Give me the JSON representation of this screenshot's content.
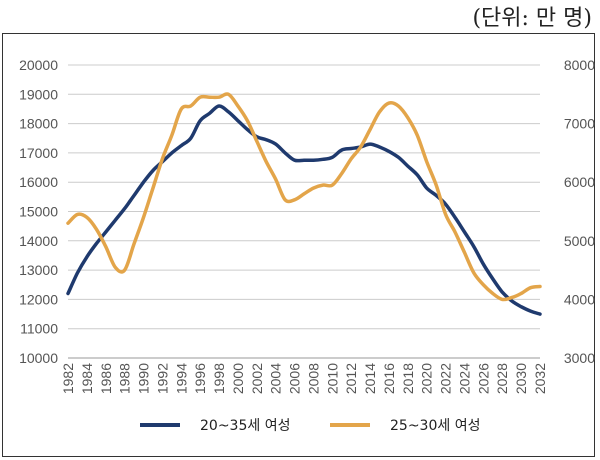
{
  "unit_label": "(단위: 만 명)",
  "colors": {
    "navy": "#1f3a6e",
    "gold": "#e3a54a",
    "grid": "#cccccc"
  },
  "chart_data": {
    "type": "line",
    "x": [
      1982,
      1983,
      1984,
      1985,
      1986,
      1987,
      1988,
      1989,
      1990,
      1991,
      1992,
      1993,
      1994,
      1995,
      1996,
      1997,
      1998,
      1999,
      2000,
      2001,
      2002,
      2003,
      2004,
      2005,
      2006,
      2007,
      2008,
      2009,
      2010,
      2011,
      2012,
      2013,
      2014,
      2015,
      2016,
      2017,
      2018,
      2019,
      2020,
      2021,
      2022,
      2023,
      2024,
      2025,
      2026,
      2027,
      2028,
      2029,
      2030,
      2031,
      2032
    ],
    "x_tick_labels": [
      "1982",
      "1984",
      "1986",
      "1988",
      "1990",
      "1992",
      "1994",
      "1996",
      "1998",
      "2000",
      "2002",
      "2004",
      "2006",
      "2008",
      "2010",
      "2012",
      "2014",
      "2016",
      "2018",
      "2020",
      "2022",
      "2024",
      "2026",
      "2028",
      "2030",
      "2032"
    ],
    "y_left": {
      "min": 10000,
      "max": 20000,
      "ticks": [
        "10000",
        "11000",
        "12000",
        "13000",
        "14000",
        "15000",
        "16000",
        "17000",
        "18000",
        "19000",
        "20000"
      ]
    },
    "y_right": {
      "min": 3000,
      "max": 8000,
      "ticks": [
        "3000",
        "4000",
        "5000",
        "6000",
        "7000",
        "8000"
      ]
    },
    "grid": true,
    "legend_position": "bottom",
    "series": [
      {
        "name": "20~35세 여성",
        "axis": "left",
        "color": "#1f3a6e",
        "values": [
          12200,
          12900,
          13450,
          13900,
          14300,
          14700,
          15100,
          15550,
          16000,
          16400,
          16700,
          17000,
          17250,
          17500,
          18100,
          18350,
          18600,
          18400,
          18100,
          17800,
          17550,
          17450,
          17300,
          17000,
          16750,
          16750,
          16750,
          16780,
          16850,
          17100,
          17150,
          17200,
          17300,
          17200,
          17050,
          16850,
          16550,
          16250,
          15800,
          15550,
          15250,
          14800,
          14300,
          13800,
          13200,
          12700,
          12250,
          11950,
          11750,
          11600,
          11500
        ]
      },
      {
        "name": "25~30세 여성",
        "axis": "right",
        "color": "#e3a54a",
        "values": [
          5300,
          5450,
          5400,
          5200,
          4900,
          4550,
          4500,
          4950,
          5400,
          5900,
          6400,
          6800,
          7250,
          7300,
          7450,
          7450,
          7450,
          7500,
          7300,
          7050,
          6700,
          6350,
          6050,
          5700,
          5700,
          5800,
          5900,
          5950,
          5950,
          6150,
          6400,
          6600,
          6900,
          7200,
          7350,
          7300,
          7100,
          6800,
          6350,
          5950,
          5450,
          5150,
          4800,
          4450,
          4250,
          4100,
          4000,
          4030,
          4100,
          4200,
          4220
        ]
      }
    ]
  }
}
